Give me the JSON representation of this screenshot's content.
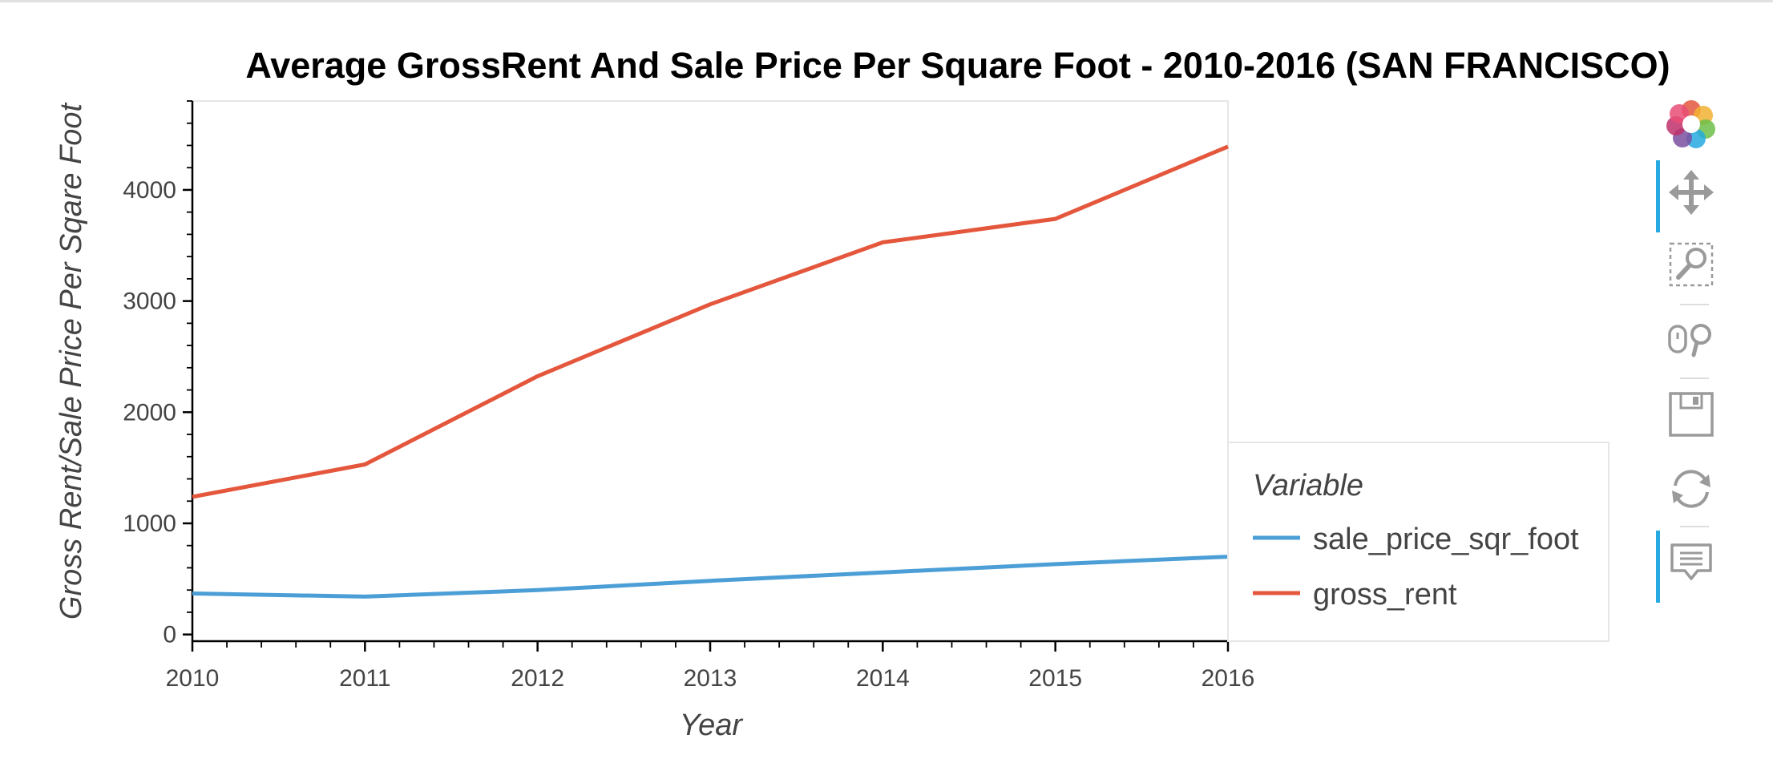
{
  "chart_data": {
    "type": "line",
    "title": "Average GrossRent And Sale Price Per Square Foot - 2010-2016 (SAN FRANCISCO)",
    "xlabel": "Year",
    "ylabel": "Gross Rent/Sale Price Per Sqare Foot",
    "x": [
      2010,
      2011,
      2012,
      2013,
      2014,
      2015,
      2016
    ],
    "xticks": [
      "2010",
      "2011",
      "2012",
      "2013",
      "2014",
      "2015",
      "2016"
    ],
    "yticks": [
      "0",
      "1000",
      "2000",
      "3000",
      "4000"
    ],
    "xlim": [
      2010,
      2016
    ],
    "ylim": [
      -60,
      4800
    ],
    "grid": false,
    "legend": {
      "title": "Variable",
      "placement": "right"
    },
    "series": [
      {
        "name": "sale_price_sqr_foot",
        "color": "#4c9fd6",
        "values": [
          369,
          341,
          399,
          483,
          559,
          633,
          700
        ]
      },
      {
        "name": "gross_rent",
        "color": "#e4573d",
        "values": [
          1239,
          1530,
          2324,
          2971,
          3528,
          3739,
          4390
        ]
      }
    ]
  },
  "toolbar": {
    "tools": [
      {
        "icon": "bokeh-logo-icon",
        "active": false
      },
      {
        "icon": "pan-icon",
        "active": true
      },
      {
        "icon": "box-zoom-icon",
        "active": false
      },
      {
        "icon": "wheel-zoom-icon",
        "active": false
      },
      {
        "icon": "save-icon",
        "active": false
      },
      {
        "icon": "reset-icon",
        "active": false
      },
      {
        "icon": "hover-icon",
        "active": true
      }
    ]
  }
}
